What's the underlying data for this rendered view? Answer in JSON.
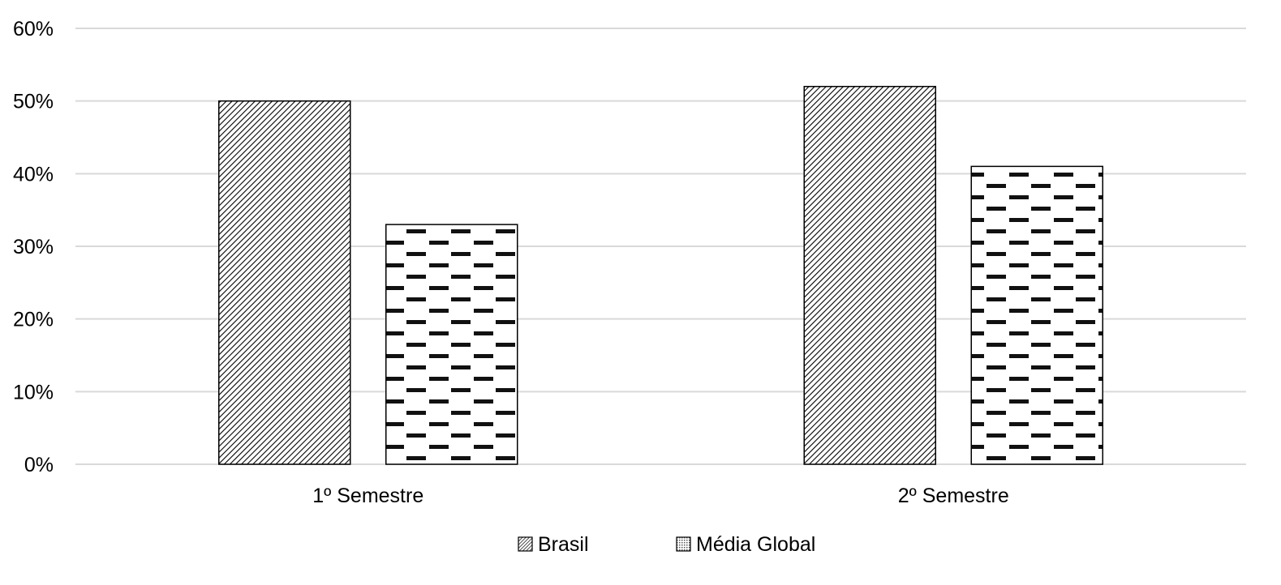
{
  "chart_data": {
    "type": "bar",
    "title": "",
    "xlabel": "",
    "ylabel": "",
    "categories": [
      "1º Semestre",
      "2º Semestre"
    ],
    "series": [
      {
        "name": "Brasil",
        "values": [
          50,
          52
        ],
        "pattern": "diagonal-hatch",
        "color": "#000000"
      },
      {
        "name": "Média Global",
        "values": [
          33,
          41
        ],
        "pattern": "dashed-horizontal",
        "color": "#000000"
      }
    ],
    "ylim": [
      0,
      60
    ],
    "yticks": [
      0,
      10,
      20,
      30,
      40,
      50,
      60
    ],
    "ytick_labels": [
      "0%",
      "10%",
      "20%",
      "30%",
      "40%",
      "50%",
      "60%"
    ],
    "grid": true,
    "grid_color": "#d9d9d9",
    "legend_position": "bottom"
  }
}
